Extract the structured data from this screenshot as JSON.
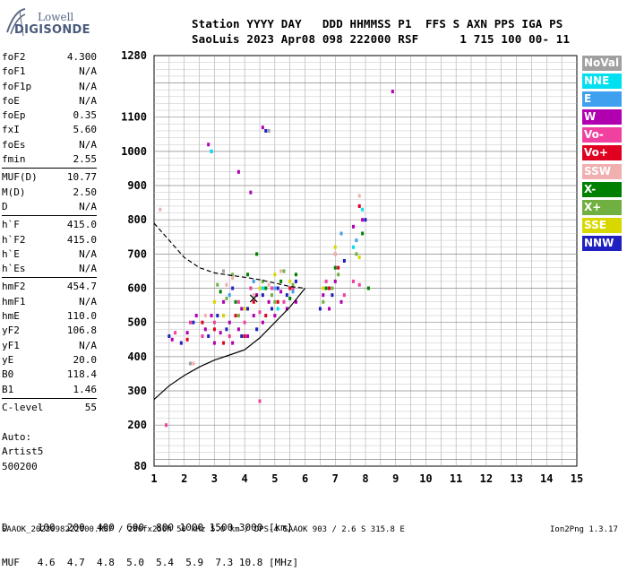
{
  "logo": {
    "line1": "Lowell",
    "line2": "DIGISONDE"
  },
  "header": {
    "line1": "Station YYYY DAY   DDD HHMMSS P1  FFS S AXN PPS IGA PS",
    "line2": "SaoLuis 2023 Apr08 098 222000 RSF      1 715 100 00- 11"
  },
  "params": [
    {
      "label": "foF2",
      "value": "4.300"
    },
    {
      "label": "foF1",
      "value": "N/A"
    },
    {
      "label": "foF1p",
      "value": "N/A"
    },
    {
      "label": "foE",
      "value": "N/A"
    },
    {
      "label": "foEp",
      "value": "0.35"
    },
    {
      "label": "fxI",
      "value": "5.60"
    },
    {
      "label": "foEs",
      "value": "N/A"
    },
    {
      "label": "fmin",
      "value": "2.55"
    },
    {
      "label": "MUF(D)",
      "value": "10.77"
    },
    {
      "label": "M(D)",
      "value": "2.50"
    },
    {
      "label": "D",
      "value": "N/A"
    },
    {
      "label": "h`F",
      "value": "415.0"
    },
    {
      "label": "h`F2",
      "value": "415.0"
    },
    {
      "label": "h`E",
      "value": "N/A"
    },
    {
      "label": "h`Es",
      "value": "N/A"
    },
    {
      "label": "hmF2",
      "value": "454.7"
    },
    {
      "label": "hmF1",
      "value": "N/A"
    },
    {
      "label": "hmE",
      "value": "110.0"
    },
    {
      "label": "yF2",
      "value": "106.8"
    },
    {
      "label": "yF1",
      "value": "N/A"
    },
    {
      "label": "yE",
      "value": "20.0"
    },
    {
      "label": "B0",
      "value": "118.4"
    },
    {
      "label": "B1",
      "value": "1.46"
    },
    {
      "label": "C-level",
      "value": "55"
    }
  ],
  "auto": {
    "line1": "Auto:",
    "line2": "Artist5",
    "line3": "500200"
  },
  "legend": [
    {
      "label": "NoVal",
      "color": "#a0a0a0"
    },
    {
      "label": "NNE",
      "color": "#00e0f0"
    },
    {
      "label": "E",
      "color": "#40a0f0"
    },
    {
      "label": "W",
      "color": "#b000b0"
    },
    {
      "label": "Vo-",
      "color": "#f040a0"
    },
    {
      "label": "Vo+",
      "color": "#e00020"
    },
    {
      "label": "SSW",
      "color": "#f0b0b0"
    },
    {
      "label": "X-",
      "color": "#008000"
    },
    {
      "label": "X+",
      "color": "#70b040"
    },
    {
      "label": "SSE",
      "color": "#d8d800"
    },
    {
      "label": "NNW",
      "color": "#2020c0"
    }
  ],
  "bottom": {
    "line1": "D     100  200  400  600  800 1000 1500 3000 [km]",
    "line2": "MUF   4.6  4.7  4.8  5.0  5.4  5.9  7.3 10.8 [MHz]"
  },
  "footer": "SAAOK_2023098222000.RSF / 280fx256h 50 kHz 5.0 km / DPS-4 SAAOK 903 / 2.6 S 315.8 E",
  "version": "Ion2Png 1.3.17",
  "chart_data": {
    "type": "scatter",
    "title": "",
    "xlabel": "",
    "ylabel": "",
    "xlim": [
      1,
      15
    ],
    "ylim": [
      80,
      1280
    ],
    "x_ticks": [
      1,
      2,
      3,
      4,
      5,
      6,
      7,
      8,
      9,
      10,
      11,
      12,
      13,
      14,
      15
    ],
    "y_ticks": [
      80,
      200,
      300,
      400,
      500,
      600,
      700,
      800,
      900,
      1000,
      1100,
      1280
    ],
    "grid": true,
    "series": [
      {
        "name": "X+",
        "color": "#70b040",
        "points": [
          [
            3.1,
            610
          ],
          [
            3.4,
            570
          ],
          [
            3.6,
            640
          ],
          [
            4.2,
            600
          ],
          [
            4.6,
            620
          ],
          [
            5.0,
            560
          ],
          [
            5.3,
            650
          ],
          [
            5.6,
            610
          ],
          [
            6.6,
            560
          ],
          [
            6.9,
            600
          ],
          [
            7.1,
            640
          ],
          [
            7.7,
            700
          ],
          [
            3.8,
            520
          ],
          [
            4.9,
            580
          ]
        ]
      },
      {
        "name": "X-",
        "color": "#008000",
        "points": [
          [
            3.2,
            590
          ],
          [
            3.7,
            560
          ],
          [
            4.1,
            640
          ],
          [
            4.7,
            600
          ],
          [
            5.2,
            620
          ],
          [
            5.5,
            570
          ],
          [
            5.7,
            640
          ],
          [
            6.7,
            600
          ],
          [
            7.0,
            660
          ],
          [
            7.9,
            760
          ],
          [
            8.1,
            600
          ],
          [
            4.4,
            700
          ]
        ]
      },
      {
        "name": "W",
        "color": "#b000b0",
        "points": [
          [
            1.6,
            450
          ],
          [
            2.1,
            470
          ],
          [
            2.4,
            520
          ],
          [
            2.7,
            480
          ],
          [
            2.9,
            520
          ],
          [
            3.0,
            440
          ],
          [
            3.2,
            470
          ],
          [
            3.3,
            560
          ],
          [
            3.5,
            500
          ],
          [
            3.6,
            440
          ],
          [
            3.8,
            480
          ],
          [
            3.9,
            540
          ],
          [
            4.1,
            460
          ],
          [
            4.3,
            520
          ],
          [
            4.4,
            580
          ],
          [
            4.6,
            500
          ],
          [
            4.8,
            560
          ],
          [
            5.0,
            520
          ],
          [
            5.2,
            590
          ],
          [
            5.4,
            540
          ],
          [
            5.7,
            560
          ],
          [
            6.6,
            580
          ],
          [
            6.8,
            540
          ],
          [
            7.0,
            620
          ],
          [
            7.2,
            560
          ],
          [
            7.6,
            780
          ],
          [
            7.9,
            800
          ],
          [
            8.9,
            1175
          ],
          [
            2.8,
            1020
          ],
          [
            4.6,
            1070
          ],
          [
            3.8,
            940
          ],
          [
            4.2,
            880
          ]
        ]
      },
      {
        "name": "Vo-",
        "color": "#f040a0",
        "points": [
          [
            1.7,
            470
          ],
          [
            2.2,
            500
          ],
          [
            2.6,
            460
          ],
          [
            3.0,
            500
          ],
          [
            3.3,
            520
          ],
          [
            3.5,
            460
          ],
          [
            3.8,
            560
          ],
          [
            4.0,
            500
          ],
          [
            4.2,
            600
          ],
          [
            4.5,
            530
          ],
          [
            4.9,
            600
          ],
          [
            5.3,
            560
          ],
          [
            5.6,
            600
          ],
          [
            6.7,
            620
          ],
          [
            7.0,
            700
          ],
          [
            7.3,
            580
          ],
          [
            7.8,
            610
          ],
          [
            1.4,
            200
          ],
          [
            4.5,
            270
          ],
          [
            7.6,
            620
          ]
        ]
      },
      {
        "name": "Vo+",
        "color": "#e00020",
        "points": [
          [
            2.1,
            450
          ],
          [
            2.6,
            500
          ],
          [
            3.0,
            480
          ],
          [
            3.3,
            440
          ],
          [
            3.7,
            520
          ],
          [
            4.0,
            460
          ],
          [
            4.3,
            560
          ],
          [
            4.7,
            520
          ],
          [
            5.1,
            560
          ],
          [
            5.5,
            600
          ],
          [
            6.8,
            600
          ],
          [
            7.1,
            660
          ],
          [
            7.8,
            840
          ]
        ]
      },
      {
        "name": "NNW",
        "color": "#2020c0",
        "points": [
          [
            1.5,
            460
          ],
          [
            1.9,
            440
          ],
          [
            2.3,
            500
          ],
          [
            2.8,
            460
          ],
          [
            3.1,
            520
          ],
          [
            3.4,
            480
          ],
          [
            3.6,
            600
          ],
          [
            3.9,
            460
          ],
          [
            4.1,
            540
          ],
          [
            4.4,
            480
          ],
          [
            4.6,
            580
          ],
          [
            4.9,
            540
          ],
          [
            5.1,
            600
          ],
          [
            5.4,
            580
          ],
          [
            5.7,
            620
          ],
          [
            6.5,
            540
          ],
          [
            6.9,
            580
          ],
          [
            7.3,
            680
          ],
          [
            8.0,
            800
          ],
          [
            2.9,
            1000
          ],
          [
            4.7,
            1060
          ]
        ]
      },
      {
        "name": "NNE",
        "color": "#00e0f0",
        "points": [
          [
            2.9,
            1000
          ],
          [
            4.6,
            600
          ],
          [
            5.1,
            540
          ],
          [
            7.6,
            720
          ],
          [
            7.9,
            830
          ]
        ]
      },
      {
        "name": "E",
        "color": "#40a0f0",
        "points": [
          [
            3.5,
            580
          ],
          [
            4.3,
            620
          ],
          [
            5.0,
            600
          ],
          [
            5.6,
            590
          ],
          [
            7.2,
            760
          ],
          [
            7.7,
            740
          ]
        ]
      },
      {
        "name": "SSW",
        "color": "#f0b0b0",
        "points": [
          [
            2.3,
            380
          ],
          [
            3.4,
            610
          ],
          [
            3.6,
            630
          ],
          [
            4.3,
            580
          ],
          [
            4.8,
            610
          ],
          [
            5.2,
            650
          ],
          [
            7.0,
            700
          ],
          [
            7.8,
            870
          ],
          [
            2.7,
            520
          ],
          [
            1.2,
            830
          ]
        ]
      },
      {
        "name": "SSE",
        "color": "#d8d800",
        "points": [
          [
            3.0,
            560
          ],
          [
            3.3,
            520
          ],
          [
            4.0,
            540
          ],
          [
            4.5,
            600
          ],
          [
            5.0,
            640
          ],
          [
            5.5,
            620
          ],
          [
            6.6,
            600
          ],
          [
            7.0,
            720
          ],
          [
            7.8,
            690
          ]
        ]
      },
      {
        "name": "NoVal",
        "color": "#a0a0a0",
        "points": [
          [
            2.2,
            380
          ],
          [
            4.8,
            1060
          ],
          [
            3.3,
            650
          ]
        ]
      }
    ],
    "profile_solid": [
      [
        1,
        275
      ],
      [
        1.5,
        315
      ],
      [
        2,
        345
      ],
      [
        2.5,
        370
      ],
      [
        3,
        390
      ],
      [
        3.5,
        405
      ],
      [
        4,
        420
      ],
      [
        4.5,
        455
      ],
      [
        5,
        500
      ],
      [
        5.5,
        545
      ],
      [
        6,
        600
      ]
    ],
    "profile_dashed": [
      [
        1,
        790
      ],
      [
        1.5,
        740
      ],
      [
        2,
        690
      ],
      [
        2.5,
        660
      ],
      [
        3,
        645
      ],
      [
        3.5,
        638
      ],
      [
        4,
        632
      ],
      [
        4.5,
        625
      ],
      [
        5,
        615
      ],
      [
        5.5,
        605
      ],
      [
        6,
        600
      ]
    ],
    "marker_foF2": [
      4.3,
      570
    ]
  }
}
